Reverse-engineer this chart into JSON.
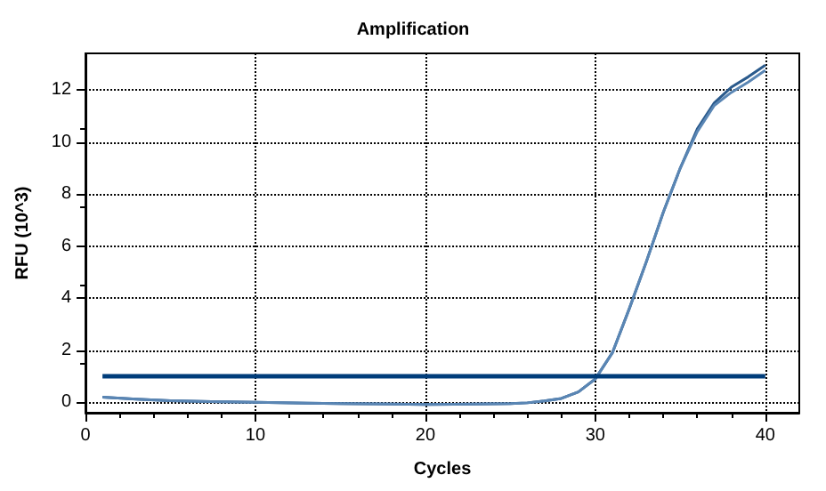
{
  "chart_data": {
    "type": "line",
    "title": "Amplification",
    "xlabel": "Cycles",
    "ylabel": "RFU (10^3)",
    "x": [
      1,
      3,
      5,
      8,
      10,
      13,
      15,
      18,
      20,
      23,
      25,
      26,
      27,
      28,
      29,
      30,
      31,
      32,
      33,
      34,
      35,
      36,
      37,
      38,
      39,
      40
    ],
    "series": [
      {
        "color": "#2a5a8c",
        "values": [
          0.2,
          0.12,
          0.06,
          0.02,
          0,
          -0.03,
          -0.05,
          -0.07,
          -0.08,
          -0.07,
          -0.05,
          -0.02,
          0.05,
          0.15,
          0.4,
          0.9,
          1.9,
          3.6,
          5.4,
          7.3,
          9.0,
          10.5,
          11.5,
          12.1,
          12.5,
          12.95
        ]
      },
      {
        "color": "#5a86b4",
        "values": [
          0.2,
          0.12,
          0.06,
          0.02,
          0,
          -0.03,
          -0.05,
          -0.07,
          -0.08,
          -0.07,
          -0.05,
          -0.02,
          0.05,
          0.15,
          0.4,
          0.9,
          1.9,
          3.6,
          5.4,
          7.3,
          9.0,
          10.4,
          11.4,
          11.9,
          12.3,
          12.75
        ]
      },
      {
        "color": "#003d7a",
        "x": [
          1,
          40
        ],
        "values": [
          1,
          1
        ]
      }
    ],
    "xlim": [
      0,
      42
    ],
    "xticks": [
      0,
      10,
      20,
      30,
      40
    ],
    "ylim": [
      -0.4,
      13.4
    ],
    "yticks": [
      0,
      2,
      4,
      6,
      8,
      10,
      12
    ],
    "grid": true,
    "marker": "none",
    "line_style": "solid"
  }
}
